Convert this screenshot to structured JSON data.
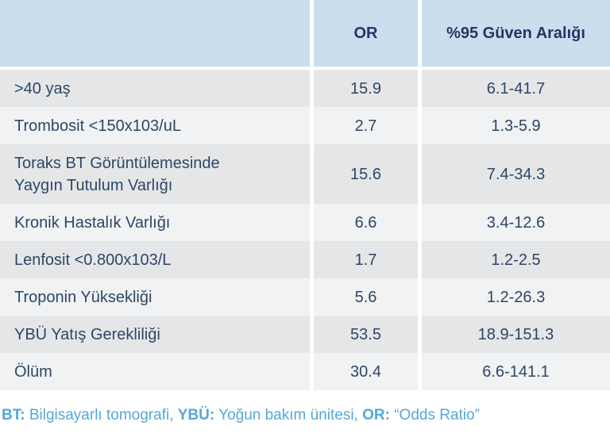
{
  "table": {
    "header": {
      "or": "OR",
      "ci": "%95 Güven Aralığı"
    },
    "rows": [
      {
        "label": ">40 yaş",
        "or": "15.9",
        "ci": "6.1-41.7"
      },
      {
        "label": "Trombosit <150x103/uL",
        "or": "2.7",
        "ci": "1.3-5.9"
      },
      {
        "label": "Toraks BT Görüntülemesinde\nYaygın Tutulum Varlığı",
        "or": "15.6",
        "ci": "7.4-34.3"
      },
      {
        "label": "Kronik Hastalık Varlığı",
        "or": "6.6",
        "ci": "3.4-12.6"
      },
      {
        "label": "Lenfosit <0.800x103/L",
        "or": "1.7",
        "ci": "1.2-2.5"
      },
      {
        "label": "Troponin Yüksekliği",
        "or": "5.6",
        "ci": "1.2-26.3"
      },
      {
        "label": "YBÜ Yatış Gerekliliği",
        "or": "53.5",
        "ci": "18.9-151.3"
      },
      {
        "label": "Ölüm",
        "or": "30.4",
        "ci": "6.6-141.1"
      }
    ]
  },
  "footnote": {
    "segments": [
      {
        "abbr": "BT:",
        "text": " Bilgisayarlı tomografi, "
      },
      {
        "abbr": "YBÜ:",
        "text": " Yoğun bakım ünitesi, "
      },
      {
        "abbr": "OR:",
        "text": " “Odds Ratio”"
      }
    ]
  },
  "colors": {
    "header_bg": "#cbdeee",
    "header_text": "#1f3864",
    "row_dark_bg": "#e5e6e8",
    "row_light_bg": "#f1f2f3",
    "body_text": "#2d4765",
    "footnote_text": "#55a8d6"
  }
}
